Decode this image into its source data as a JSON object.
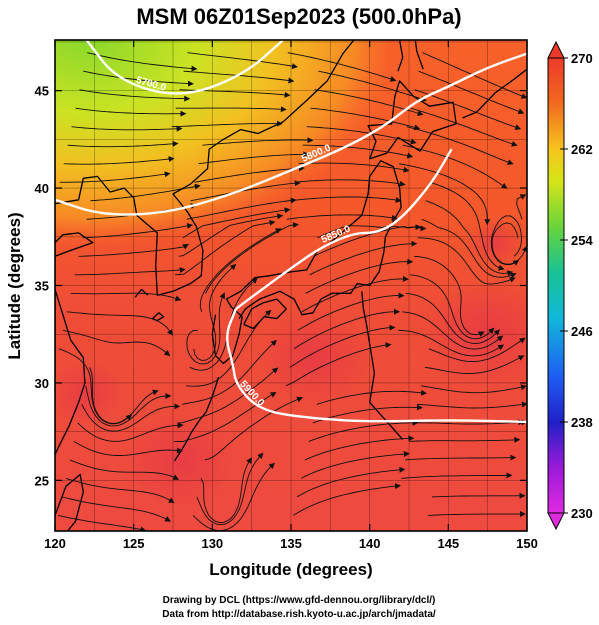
{
  "title": "MSM 06Z01Sep2023 (500.0hPa)",
  "axes": {
    "xlabel": "Longitude (degrees)",
    "ylabel": "Latitude  (degrees)",
    "x_ticks": [
      "120",
      "125",
      "130",
      "135",
      "140",
      "145",
      "150"
    ],
    "y_ticks": [
      "25",
      "30",
      "35",
      "40",
      "45"
    ],
    "xlim": [
      120,
      150
    ],
    "ylim": [
      22.4,
      47.6
    ]
  },
  "colorbar": {
    "ticks": [
      "270",
      "262",
      "254",
      "246",
      "238",
      "230"
    ],
    "range": [
      230,
      270
    ]
  },
  "contours": {
    "labels": [
      "5700.0",
      "5800.0",
      "5850.0",
      "5900.0"
    ]
  },
  "credits": {
    "line1": "Drawing by DCL (https://www.gfd-dennou.org/library/dcl/)",
    "line2": "Data from http://database.rish.kyoto-u.ac.jp/arch/jmadata/"
  },
  "chart_data": {
    "type": "heatmap",
    "variable": "temperature (K) with geopotential height contours and streamlines",
    "xlim": [
      120,
      150
    ],
    "ylim": [
      22.4,
      47.6
    ],
    "colorbar_range": [
      230,
      270
    ],
    "grid": true,
    "contours": [
      {
        "label": "5700.0",
        "points": [
          [
            122,
            47.6
          ],
          [
            124,
            45.5
          ],
          [
            128,
            44.6
          ],
          [
            132,
            45.8
          ],
          [
            134.5,
            47.6
          ]
        ]
      },
      {
        "label": "5800.0",
        "points": [
          [
            120,
            39.4
          ],
          [
            123,
            38.6
          ],
          [
            127,
            38.7
          ],
          [
            131,
            39.6
          ],
          [
            135,
            40.9
          ],
          [
            138.5,
            42.1
          ],
          [
            141,
            43.2
          ],
          [
            143,
            44.5
          ],
          [
            145,
            45.2
          ],
          [
            147.5,
            46.2
          ],
          [
            150,
            46.9
          ]
        ]
      },
      {
        "label": "5850.0",
        "points": [
          [
            131.5,
            33.8
          ],
          [
            133,
            34.7
          ],
          [
            135,
            35.9
          ],
          [
            137,
            37.0
          ],
          [
            139,
            37.7
          ],
          [
            140.5,
            37.7
          ],
          [
            142,
            38.4
          ],
          [
            144,
            40.3
          ],
          [
            145.2,
            42.0
          ]
        ]
      },
      {
        "label": "5900.0",
        "points": [
          [
            131.5,
            33.8
          ],
          [
            130.8,
            32.4
          ],
          [
            131.3,
            31.0
          ],
          [
            131.5,
            29.9
          ],
          [
            133,
            28.6
          ],
          [
            136,
            28.2
          ],
          [
            140,
            28.0
          ],
          [
            145,
            28.1
          ],
          [
            150,
            28.0
          ]
        ]
      }
    ],
    "warm_regions": [
      {
        "center": [
          128,
          26
        ],
        "radius": 3
      },
      {
        "center": [
          136.5,
          31.3
        ],
        "radius": 3
      },
      {
        "center": [
          147.5,
          32.5
        ],
        "radius": 3.5
      },
      {
        "center": [
          148,
          37.2
        ],
        "radius": 1.5
      },
      {
        "center": [
          122,
          29.5
        ],
        "radius": 2
      }
    ],
    "vortices": [
      {
        "center": [
          146.6,
          33.1
        ],
        "sense": "ccw"
      },
      {
        "center": [
          129.4,
          31.6
        ],
        "sense": "ccw"
      },
      {
        "center": [
          148.8,
          36.9
        ],
        "sense": "ccw"
      },
      {
        "center": [
          123.5,
          28.8
        ],
        "sense": "ccw"
      },
      {
        "center": [
          130.5,
          23.5
        ],
        "sense": "ccw"
      }
    ]
  }
}
